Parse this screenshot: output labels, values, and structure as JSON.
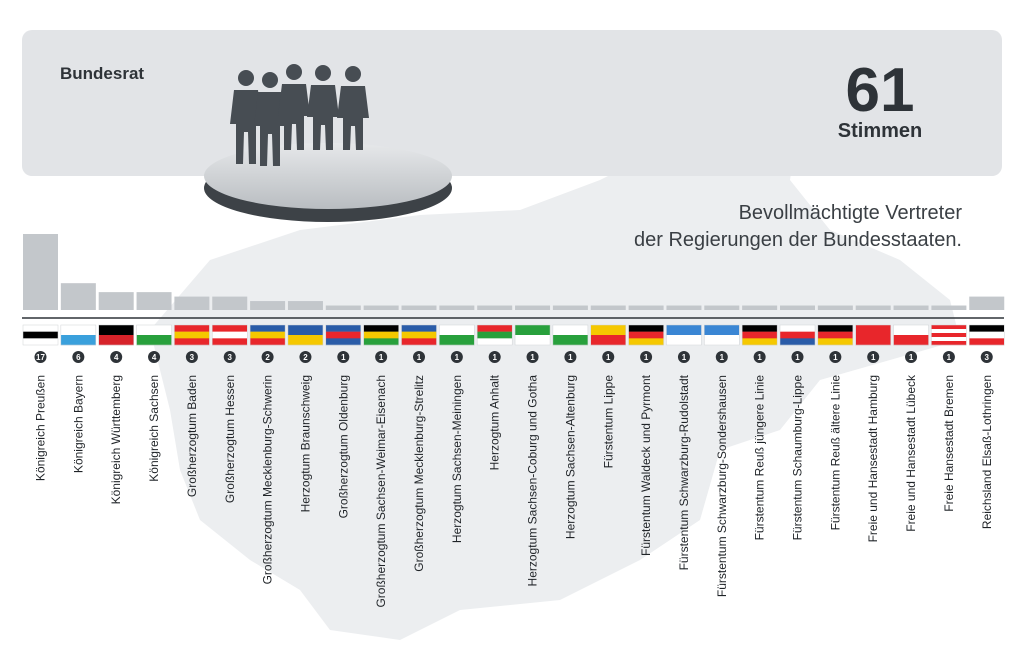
{
  "header": {
    "org": "Bundesrat",
    "total": "61",
    "unit": "Stimmen",
    "desc_line1": "Bevollmächtigte Vertreter",
    "desc_line2": "der Regierungen der Bundesstaaten."
  },
  "colors": {
    "bar": "#c3c7cb",
    "badge": "#2e3338",
    "banner": "#e2e4e7",
    "map": "#eceef0"
  },
  "chart_data": {
    "type": "bar",
    "title": "Bundesrat",
    "xlabel": "",
    "ylabel": "",
    "ylim": [
      0,
      17
    ],
    "categories": [
      "Königreich Preußen",
      "Königreich Bayern",
      "Königreich Württemberg",
      "Königreich Sachsen",
      "Großherzogtum Baden",
      "Großherzogtum Hessen",
      "Großherzogtum Mecklenburg-Schwerin",
      "Herzogtum Braunschweig",
      "Großherzogtum Oldenburg",
      "Großherzogtum Sachsen-Weimar-Eisenach",
      "Großherzogtum Mecklenburg-Strelitz",
      "Herzogtum Sachsen-Meiningen",
      "Herzogtum Anhalt",
      "Herzogtum Sachsen-Coburg und Gotha",
      "Herzogtum Sachsen-Altenburg",
      "Fürstentum Lippe",
      "Fürstentum Waldeck und Pyrmont",
      "Fürstentum Schwarzburg-Rudolstadt",
      "Fürstentum Schwarzburg-Sondershausen",
      "Fürstentum Reuß jüngere Linie",
      "Fürstentum Schaumburg-Lippe",
      "Fürstentum Reuß ältere Linie",
      "Freie und Hansestadt Hamburg",
      "Freie und Hansestadt Lübeck",
      "Freie Hansestadt Bremen",
      "Reichsland Elsaß-Lothringen"
    ],
    "values": [
      17,
      6,
      4,
      4,
      3,
      3,
      2,
      2,
      1,
      1,
      1,
      1,
      1,
      1,
      1,
      1,
      1,
      1,
      1,
      1,
      1,
      1,
      1,
      1,
      1,
      3
    ],
    "flags": [
      [
        "#ffffff",
        "#000000",
        "#ffffff"
      ],
      [
        "#ffffff",
        "#3aa0dc"
      ],
      [
        "#000000",
        "#d7232a"
      ],
      [
        "#ffffff",
        "#28a03c"
      ],
      [
        "#e8262b",
        "#f5c800",
        "#e8262b"
      ],
      [
        "#e8262b",
        "#ffffff",
        "#e8262b"
      ],
      [
        "#2a5ca8",
        "#f5c800",
        "#e8262b"
      ],
      [
        "#2a5ca8",
        "#f5c800"
      ],
      [
        "#2a5ca8",
        "#e8262b",
        "#2a5ca8"
      ],
      [
        "#000000",
        "#f5c800",
        "#28a03c"
      ],
      [
        "#2a5ca8",
        "#f5c800",
        "#e8262b"
      ],
      [
        "#ffffff",
        "#28a03c"
      ],
      [
        "#e8262b",
        "#28a03c",
        "#ffffff"
      ],
      [
        "#28a03c",
        "#ffffff"
      ],
      [
        "#ffffff",
        "#28a03c"
      ],
      [
        "#f5c800",
        "#e8262b"
      ],
      [
        "#000000",
        "#e8262b",
        "#f5c800"
      ],
      [
        "#3a86d4",
        "#ffffff"
      ],
      [
        "#3a86d4",
        "#ffffff"
      ],
      [
        "#000000",
        "#e8262b",
        "#f5c800"
      ],
      [
        "#ffffff",
        "#e8262b",
        "#2a5ca8"
      ],
      [
        "#000000",
        "#e8262b",
        "#f5c800"
      ],
      [
        "#e8262b",
        "#e8262b"
      ],
      [
        "#ffffff",
        "#e8262b"
      ],
      [
        "#e8262b",
        "#ffffff",
        "#e8262b",
        "#ffffff",
        "#e8262b"
      ],
      [
        "#000000",
        "#ffffff",
        "#e8262b"
      ]
    ]
  }
}
